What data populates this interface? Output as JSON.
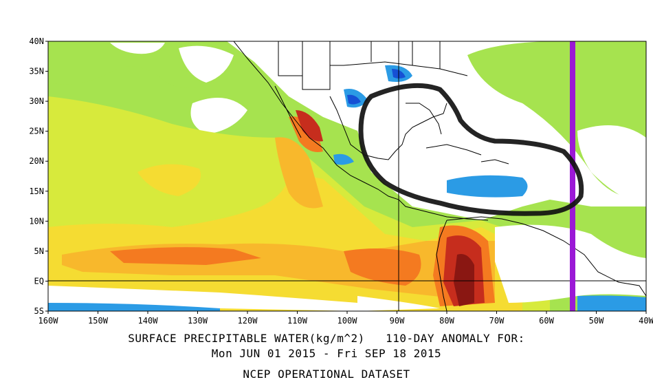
{
  "map": {
    "title_line1": "SURFACE PRECIPITABLE WATER(kg/m^2)   110-DAY ANOMALY FOR:",
    "title_line2": "Mon JUN 01 2015 - Fri SEP 18 2015",
    "dataset": "NCEP OPERATIONAL DATASET",
    "lat_labels": [
      "40N",
      "35N",
      "30N",
      "25N",
      "20N",
      "15N",
      "10N",
      "5N",
      "EQ",
      "5S"
    ],
    "lon_labels": [
      "160W",
      "150W",
      "140W",
      "130W",
      "120W",
      "110W",
      "100W",
      "90W",
      "80W",
      "70W",
      "60W",
      "50W",
      "40W"
    ],
    "extent": {
      "lon_min": -160,
      "lon_max": -40,
      "lat_min": -5,
      "lat_max": 40
    },
    "marker_line_lon": -55,
    "reference_lines": {
      "lon": -90,
      "lat": 0
    },
    "colors": {
      "light_green": "#a6e34f",
      "yellow_green": "#d7ea3c",
      "yellow": "#f5dc32",
      "gold": "#f8b82c",
      "orange": "#f47a20",
      "red": "#c62d1d",
      "dark_red": "#8a1712",
      "light_blue": "#2b9be5",
      "blue": "#1650d4",
      "marker_purple": "#9b19d6"
    }
  }
}
